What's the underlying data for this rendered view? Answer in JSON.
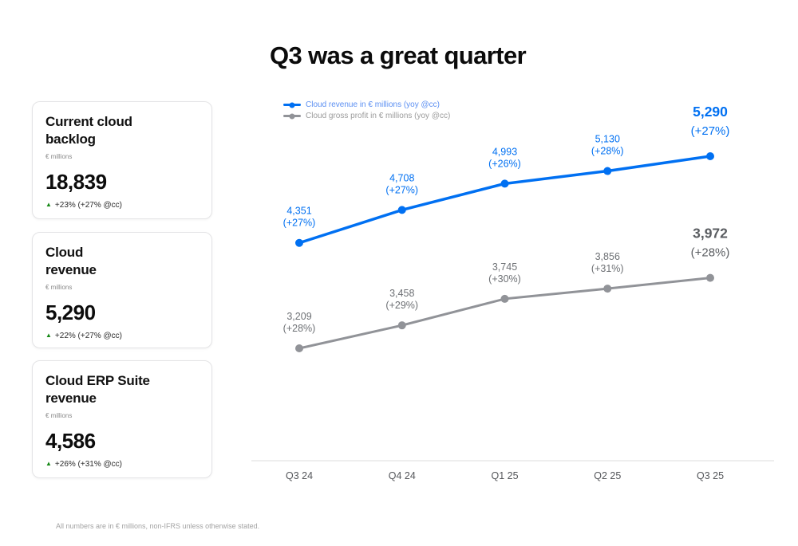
{
  "title": "Q3 was a great quarter",
  "cards": [
    {
      "title": "Current cloud\nbacklog",
      "unit": "€ millions",
      "value": "18,839",
      "delta": "+23% (+27% @cc)"
    },
    {
      "title": "Cloud\nrevenue",
      "unit": "€ millions",
      "value": "5,290",
      "delta": "+22% (+27% @cc)"
    },
    {
      "title": "Cloud ERP Suite\nrevenue",
      "unit": "€ millions",
      "value": "4,586",
      "delta": "+26% (+31% @cc)"
    }
  ],
  "icons": {
    "delta_up": "▲"
  },
  "colors": {
    "green": "#188918",
    "axis": "#dcdcdc",
    "tick_text": "#54565a"
  },
  "footer": "All numbers are in € millions, non-IFRS unless otherwise stated.",
  "chart_data": {
    "type": "line",
    "categories": [
      "Q3 24",
      "Q4 24",
      "Q1 25",
      "Q2 25",
      "Q3 25"
    ],
    "series": [
      {
        "name": "Cloud revenue in € millions (yoy @cc)",
        "color": "#0070f2",
        "label_color": "#0070f2",
        "emph_color": "#0070f2",
        "legend_color": "#5b8ff2",
        "values": [
          4351,
          4708,
          4993,
          5130,
          5290
        ],
        "labels": [
          "4,351",
          "4,708",
          "4,993",
          "5,130",
          "5,290"
        ],
        "yoy": [
          "(+27%)",
          "(+27%)",
          "(+26%)",
          "(+28%)",
          "(+27%)"
        ]
      },
      {
        "name": "Cloud gross profit in € millions (yoy @cc)",
        "color": "#919398",
        "label_color": "#6d7074",
        "emph_color": "#5a5d61",
        "legend_color": "#9b9b9b",
        "values": [
          3209,
          3458,
          3745,
          3856,
          3972
        ],
        "labels": [
          "3,209",
          "3,458",
          "3,745",
          "3,856",
          "3,972"
        ],
        "yoy": [
          "(+28%)",
          "(+29%)",
          "(+30%)",
          "(+31%)",
          "(+28%)"
        ]
      }
    ],
    "legend_position": "top-left",
    "grid": false,
    "ylim": [
      3000,
      5600
    ]
  }
}
